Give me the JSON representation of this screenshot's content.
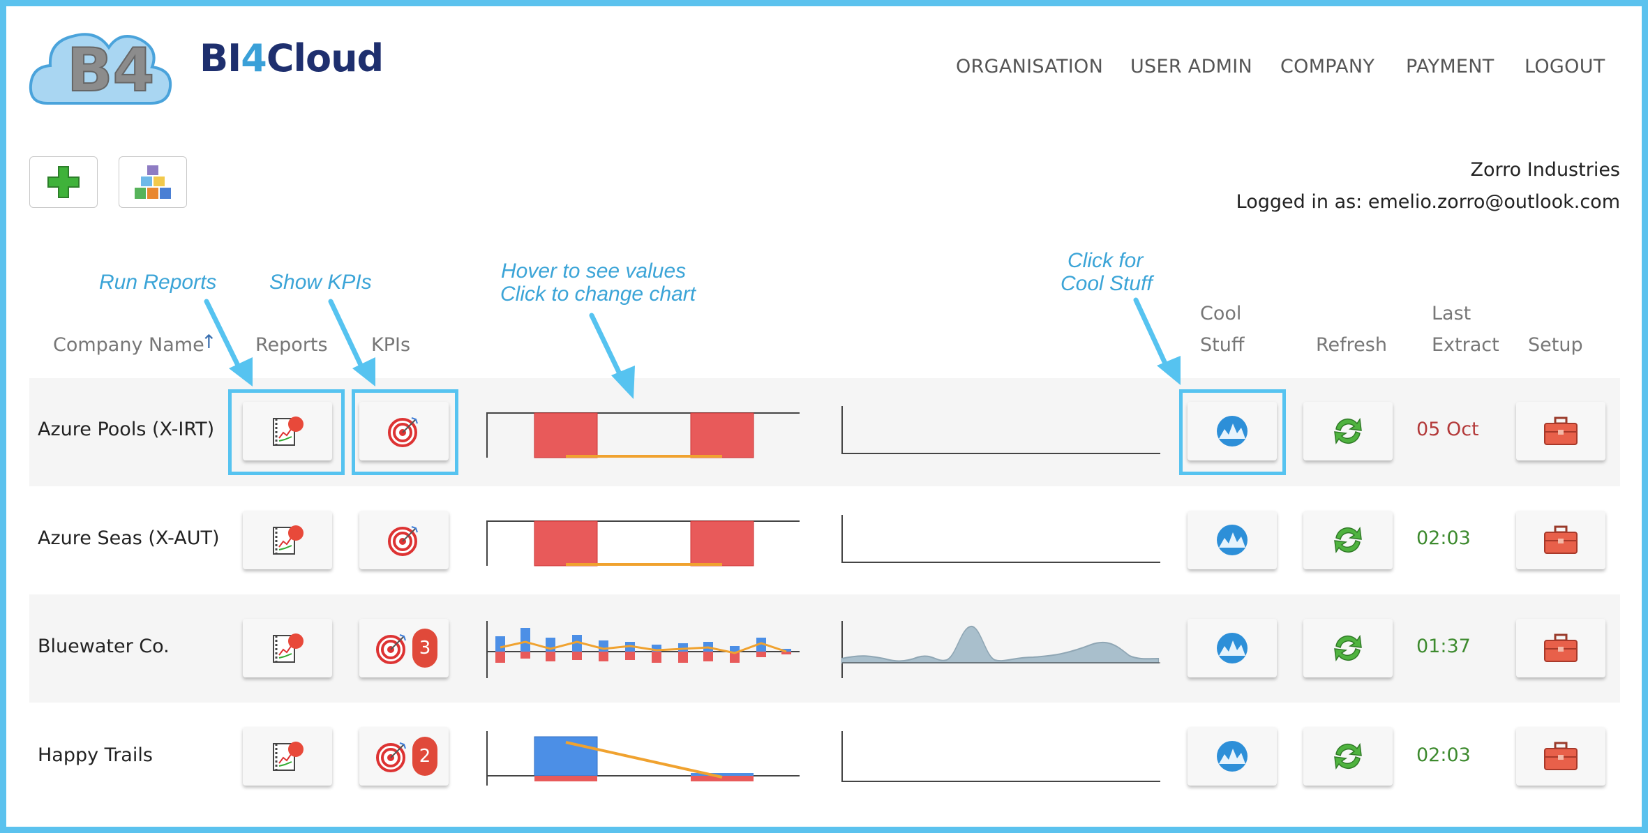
{
  "app": {
    "brand_prefix": "BI",
    "brand_number": "4",
    "brand_suffix": "Cloud",
    "logo_text": "B4"
  },
  "nav": {
    "items": [
      "ORGANISATION",
      "USER ADMIN",
      "COMPANY",
      "PAYMENT",
      "LOGOUT"
    ]
  },
  "toolbar": {
    "add_icon": "plus-icon",
    "blocks_icon": "blocks-icon"
  },
  "user": {
    "org": "Zorro Industries",
    "logged_in": "Logged in as: emelio.zorro@outlook.com"
  },
  "annotations": {
    "run_reports": "Run Reports",
    "show_kpis": "Show KPIs",
    "hover_line1": "Hover to see values",
    "hover_line2": "Click to change chart",
    "cool_line1": "Click for",
    "cool_line2": "Cool Stuff"
  },
  "columns": {
    "company": "Company Name",
    "sort_arrow": "↑",
    "reports": "Reports",
    "kpis": "KPIs",
    "cool1": "Cool",
    "cool2": "Stuff",
    "refresh": "Refresh",
    "last1": "Last",
    "last2": "Extract",
    "setup": "Setup"
  },
  "colors": {
    "accent_blue": "#3ba4d7",
    "brand_navy": "#1e2f6e",
    "red_bar": "#e85a5a",
    "blue_bar": "#4c8fe6",
    "orange_line": "#f0a22f",
    "stale_red": "#b33a3a",
    "fresh_green": "#3d8a2e"
  },
  "rows": [
    {
      "company": "Azure Pools (X-IRT)",
      "kpi_badge": "",
      "last_extract": "05 Oct",
      "extract_status": "stale"
    },
    {
      "company": "Azure Seas (X-AUT)",
      "kpi_badge": "",
      "last_extract": "02:03",
      "extract_status": "fresh"
    },
    {
      "company": "Bluewater Co.",
      "kpi_badge": "3",
      "last_extract": "01:37",
      "extract_status": "fresh"
    },
    {
      "company": "Happy Trails",
      "kpi_badge": "2",
      "last_extract": "02:03",
      "extract_status": "fresh"
    }
  ]
}
